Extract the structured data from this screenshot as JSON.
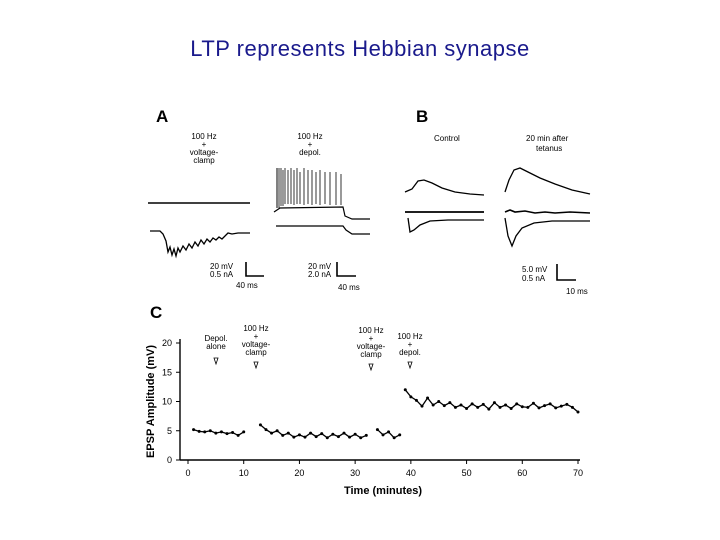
{
  "title": "LTP represents Hebbian synapse",
  "panel_a": {
    "label": "A",
    "cond1": [
      "100 Hz",
      "+",
      "voltage-",
      "clamp"
    ],
    "cond2": [
      "100 Hz",
      "+",
      "depol."
    ],
    "scale1": [
      "20 mV",
      "0.5 nA"
    ],
    "scale1_time": "40 ms",
    "scale2": [
      "20 mV",
      "2.0 nA"
    ],
    "scale2_time": "40 ms"
  },
  "panel_b": {
    "label": "B",
    "control": "Control",
    "after": [
      "20 min after",
      "tetanus"
    ],
    "scale": [
      "5.0 mV",
      "0.5 nA"
    ],
    "scale_time": "10 ms"
  },
  "panel_c": {
    "label": "C",
    "annotations": [
      [
        "Depol.",
        "alone"
      ],
      [
        "100 Hz",
        "+",
        "voltage-",
        "clamp"
      ],
      [
        "100 Hz",
        "+",
        "voltage-",
        "clamp"
      ],
      [
        "100 Hz",
        "+",
        "depol."
      ]
    ]
  },
  "chart_data": {
    "type": "scatter",
    "xlabel": "Time (minutes)",
    "ylabel": "EPSP Amplitude (mV)",
    "xlim": [
      0,
      70
    ],
    "ylim": [
      0,
      20
    ],
    "xticks": [
      0,
      10,
      20,
      30,
      40,
      50,
      60,
      70
    ],
    "yticks": [
      0,
      5,
      10,
      15,
      20
    ],
    "series": [
      {
        "x": [
          1,
          2,
          3,
          4,
          5,
          6,
          7,
          8,
          9,
          10
        ],
        "y": [
          5.2,
          4.9,
          4.8,
          5.0,
          4.6,
          4.8,
          4.5,
          4.7,
          4.2,
          4.8
        ]
      },
      {
        "x": [
          13,
          14,
          15,
          16,
          17,
          18,
          19,
          20,
          21,
          22,
          23,
          24,
          25,
          26,
          27,
          28,
          29,
          30,
          31,
          32
        ],
        "y": [
          6.0,
          5.2,
          4.6,
          5.0,
          4.2,
          4.6,
          3.9,
          4.3,
          3.9,
          4.6,
          4.0,
          4.5,
          3.8,
          4.4,
          4.0,
          4.6,
          3.9,
          4.4,
          3.8,
          4.2
        ]
      },
      {
        "x": [
          34,
          35,
          36,
          37,
          38
        ],
        "y": [
          5.2,
          4.3,
          4.8,
          3.8,
          4.3
        ]
      },
      {
        "x": [
          39,
          40,
          41,
          42,
          43,
          44,
          45,
          46,
          47,
          48,
          49,
          50,
          51,
          52,
          53,
          54,
          55,
          56,
          57,
          58,
          59,
          60,
          61,
          62,
          63,
          64,
          65,
          66,
          67,
          68,
          69,
          70
        ],
        "y": [
          12.0,
          10.8,
          10.2,
          9.2,
          10.6,
          9.4,
          10.0,
          9.3,
          9.8,
          9.0,
          9.4,
          8.8,
          9.6,
          9.0,
          9.5,
          8.7,
          9.8,
          9.0,
          9.4,
          8.8,
          9.6,
          9.1,
          9.0,
          9.7,
          8.9,
          9.3,
          9.6,
          8.9,
          9.2,
          9.5,
          9.0,
          8.2
        ]
      }
    ]
  }
}
